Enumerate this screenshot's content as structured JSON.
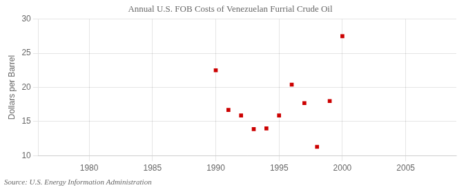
{
  "chart_data": {
    "type": "scatter",
    "title": "Annual U.S. FOB Costs of Venezuelan Furrial Crude Oil",
    "ylabel": "Dollars per Barrel",
    "annotations": [
      "Source: U.S. Energy Information Administration"
    ],
    "x": [
      1990,
      1991,
      1992,
      1993,
      1994,
      1995,
      1996,
      1997,
      1998,
      1999,
      2000
    ],
    "values": [
      22.5,
      16.7,
      15.9,
      13.9,
      14.0,
      15.9,
      20.4,
      17.7,
      11.3,
      18.0,
      27.5
    ],
    "color": "#cc0000",
    "marker": "square",
    "xlim": [
      1976,
      2009
    ],
    "ylim": [
      10,
      30
    ],
    "xticks": [
      1980,
      1985,
      1990,
      1995,
      2000,
      2005
    ],
    "yticks": [
      10,
      15,
      20,
      25,
      30
    ],
    "grid": true
  }
}
